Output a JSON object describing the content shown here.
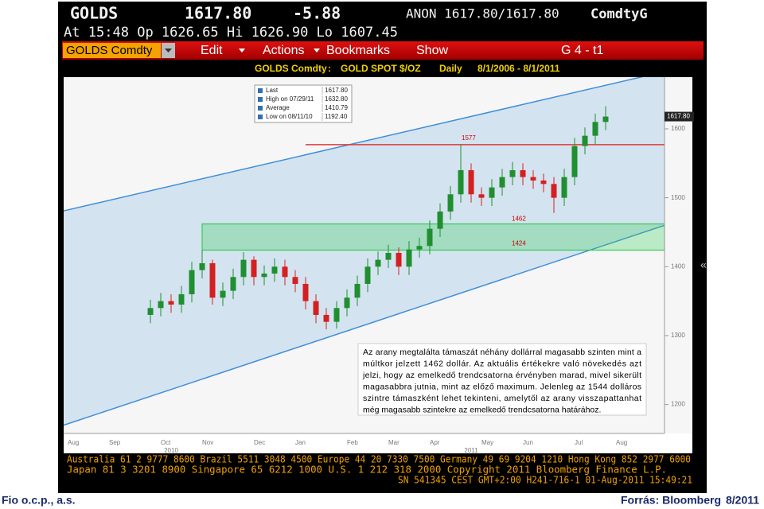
{
  "header": {
    "ticker": "GOLDS",
    "price": "1617.80",
    "change": "-5.88",
    "quote": "ANON 1617.80/1617.80",
    "sector": "ComdtyG",
    "session": "At 15:48 Op 1626.65 Hi 1626.90 Lo 1607.45"
  },
  "menu": {
    "security": "GOLDS Comdty",
    "items": [
      "Edit",
      "Actions",
      "Bookmarks",
      "Show"
    ],
    "page": "G 4 - t1"
  },
  "subheader": {
    "security": "GOLDS Comdty",
    "separator": ":",
    "name": "GOLD SPOT $/OZ",
    "period": "Daily",
    "range": "8/1/2006 - 8/1/2011"
  },
  "chart_data": {
    "type": "candlestick",
    "categories": [
      "Aug",
      null,
      null,
      null,
      "Sep",
      null,
      null,
      null,
      null,
      "Oct",
      null,
      null,
      null,
      "Nov",
      null,
      null,
      null,
      null,
      "Dec",
      null,
      null,
      null,
      "Jan",
      null,
      null,
      null,
      null,
      "Feb",
      null,
      null,
      null,
      "Mar",
      null,
      null,
      null,
      "Apr",
      null,
      null,
      null,
      null,
      "May",
      null,
      null,
      null,
      "Jun",
      null,
      null,
      null,
      null,
      "Jul",
      null,
      null,
      null,
      "Aug"
    ],
    "years": [
      "2010",
      "2011"
    ],
    "open": [
      null,
      null,
      null,
      null,
      null,
      null,
      null,
      null,
      1330,
      1340,
      1350,
      1345,
      1360,
      1395,
      1405,
      1355,
      1365,
      1385,
      1410,
      1385,
      1390,
      1400,
      1385,
      1375,
      1350,
      1330,
      1320,
      1340,
      1355,
      1375,
      1400,
      1410,
      1420,
      1400,
      1425,
      1430,
      1455,
      1480,
      1505,
      1540,
      1505,
      1500,
      1515,
      1530,
      1540,
      1530,
      1525,
      1520,
      1500,
      1530,
      1575,
      1590,
      1610,
      null
    ],
    "high": [
      null,
      null,
      null,
      null,
      null,
      null,
      null,
      null,
      1352,
      1362,
      1360,
      1372,
      1407,
      1424,
      1410,
      1377,
      1397,
      1421,
      1415,
      1402,
      1412,
      1410,
      1395,
      1385,
      1360,
      1340,
      1350,
      1367,
      1387,
      1412,
      1422,
      1432,
      1428,
      1437,
      1442,
      1467,
      1492,
      1517,
      1577,
      1550,
      1515,
      1527,
      1542,
      1552,
      1550,
      1540,
      1535,
      1530,
      1542,
      1587,
      1602,
      1622,
      1632.8,
      null
    ],
    "low": [
      null,
      null,
      null,
      null,
      null,
      null,
      null,
      null,
      1318,
      1328,
      1333,
      1333,
      1348,
      1383,
      1345,
      1343,
      1353,
      1373,
      1373,
      1373,
      1378,
      1373,
      1363,
      1338,
      1318,
      1309,
      1310,
      1328,
      1343,
      1363,
      1388,
      1398,
      1388,
      1388,
      1413,
      1418,
      1443,
      1468,
      1493,
      1493,
      1488,
      1488,
      1503,
      1518,
      1518,
      1513,
      1508,
      1478,
      1488,
      1518,
      1563,
      1578,
      1598,
      null
    ],
    "close": [
      null,
      null,
      null,
      null,
      null,
      null,
      null,
      null,
      1340,
      1350,
      1345,
      1360,
      1395,
      1405,
      1355,
      1365,
      1385,
      1410,
      1385,
      1390,
      1400,
      1385,
      1375,
      1350,
      1330,
      1320,
      1340,
      1355,
      1375,
      1400,
      1410,
      1420,
      1400,
      1425,
      1430,
      1455,
      1480,
      1505,
      1540,
      1505,
      1500,
      1515,
      1530,
      1540,
      1530,
      1525,
      1520,
      1500,
      1530,
      1575,
      1590,
      1610,
      1617.8,
      null
    ],
    "up_color": "#1f8f2f",
    "down_color": "#d42020",
    "ylim": [
      1158,
      1675
    ],
    "yticks": [
      1200,
      1300,
      1400,
      1500,
      1600
    ],
    "grid": false,
    "last": {
      "value": 1617.8,
      "label": "1617.80"
    },
    "channel": {
      "upper": [
        1481,
        1683
      ],
      "lower": [
        1170,
        1460
      ],
      "color": "#3f8fd8"
    },
    "band": {
      "values": [
        1424,
        1462
      ],
      "color": "#33cc55"
    },
    "level": {
      "value": 1577,
      "color": "#e03a3a"
    },
    "legend": [
      {
        "name": "Last",
        "value": "1617.80"
      },
      {
        "name": "High on 07/29/11",
        "value": "1632.80"
      },
      {
        "name": "Average",
        "value": "1410.79"
      },
      {
        "name": "Low on 08/11/10",
        "value": "1192.40"
      }
    ],
    "note": [
      "Az arany megtalálta támaszát néhány dollárral magasabb szinten mint a",
      "múltkor jelzett 1462 dollár. Az aktuális értékekre való növekedés azt",
      "jelzi, hogy az emelkedő trendcsatorna érvényben marad, mivel sikerült",
      "magasabbra jutnia, mint az előző maximum. Jelenleg az 1544 dolláros",
      "szintre támaszként lehet tekinteni, amelytől az arany visszapattanhat",
      "még magasabb szintekre az emelkedő trendcsatorna határához."
    ]
  },
  "side_toggle": "«",
  "footer": [
    "Australia 61 2 9777 8600 Brazil 5511 3048 4500 Europe 44 20 7330 7500 Germany 49 69 9204 1210 Hong Kong 852 2977 6000",
    "Japan 81 3 3201 8900 Singapore 65 6212 1000 U.S. 1 212 318 2000 Copyright 2011 Bloomberg Finance L.P.",
    "SN 541345 CEST GMT+2:00 H241-716-1 01-Aug-2011 15:49:21"
  ],
  "credit": {
    "left": "Fio o.c.p., a.s.",
    "source": "Forrás: Bloomberg",
    "date": "8/2011"
  }
}
